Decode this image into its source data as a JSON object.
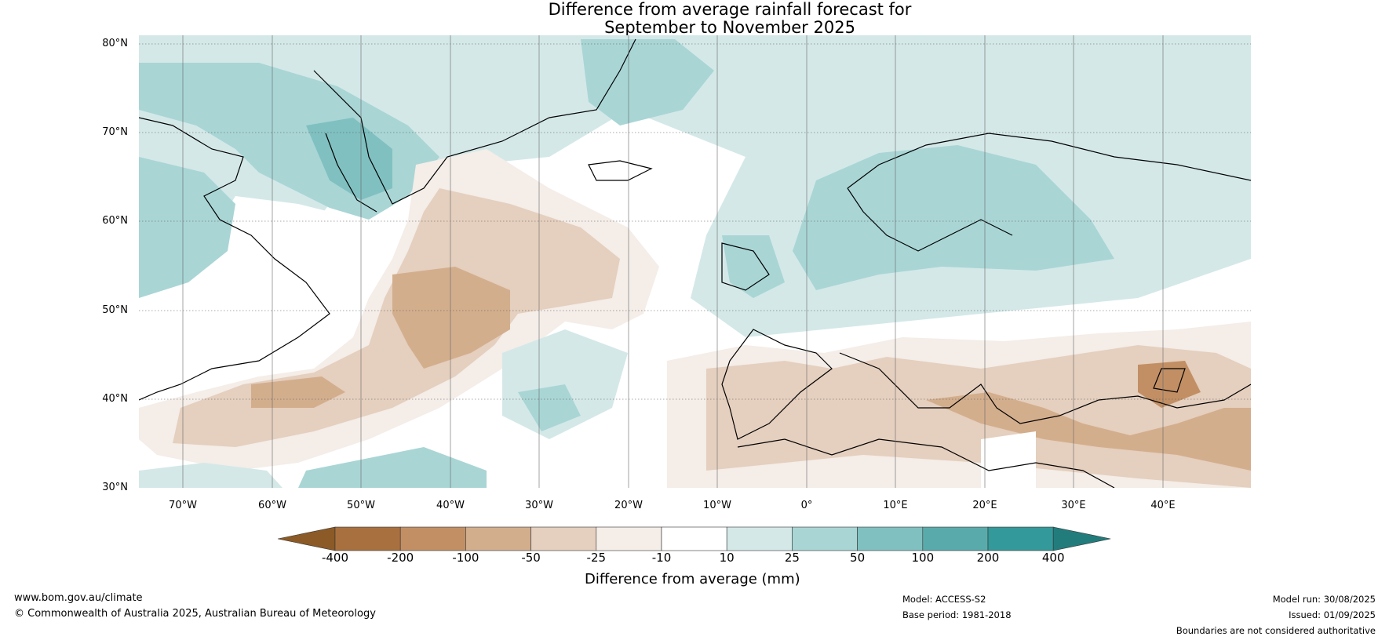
{
  "title_line1": "Difference from average rainfall forecast for",
  "title_line2": "September to November 2025",
  "lat_labels": [
    "80°N",
    "70°N",
    "60°N",
    "50°N",
    "40°N",
    "30°N"
  ],
  "lon_labels": [
    "70°W",
    "60°W",
    "50°W",
    "40°W",
    "30°W",
    "20°W",
    "10°W",
    "0°",
    "10°E",
    "20°E",
    "30°E",
    "40°E"
  ],
  "colorbar": {
    "ticks": [
      "-400",
      "-200",
      "-100",
      "-50",
      "-25",
      "-10",
      "10",
      "25",
      "50",
      "100",
      "200",
      "400"
    ],
    "colors": [
      "#8c5a26",
      "#a9703f",
      "#c28f65",
      "#d3ae8d",
      "#e5cfbe",
      "#f4ede8",
      "#ffffff",
      "#d4e8e8",
      "#a9d5d5",
      "#80c0c0",
      "#59abab",
      "#34999a",
      "#237c7c"
    ],
    "label": "Difference from average (mm)"
  },
  "footer": {
    "website": "www.bom.gov.au/climate",
    "copyright": "© Commonwealth of Australia 2025, Australian Bureau of Meteorology",
    "model": "Model: ACCESS-S2",
    "base_period": "Base period: 1981-2018",
    "model_run": "Model run: 30/08/2025",
    "issued": "Issued: 01/09/2025",
    "disclaimer": "Boundaries are not considered authoritative"
  },
  "map": {
    "lon_range": [
      -75,
      50
    ],
    "lat_range": [
      30,
      80
    ],
    "coastline_color": "#000000",
    "border_color": "#888888",
    "grid": "dotted"
  }
}
